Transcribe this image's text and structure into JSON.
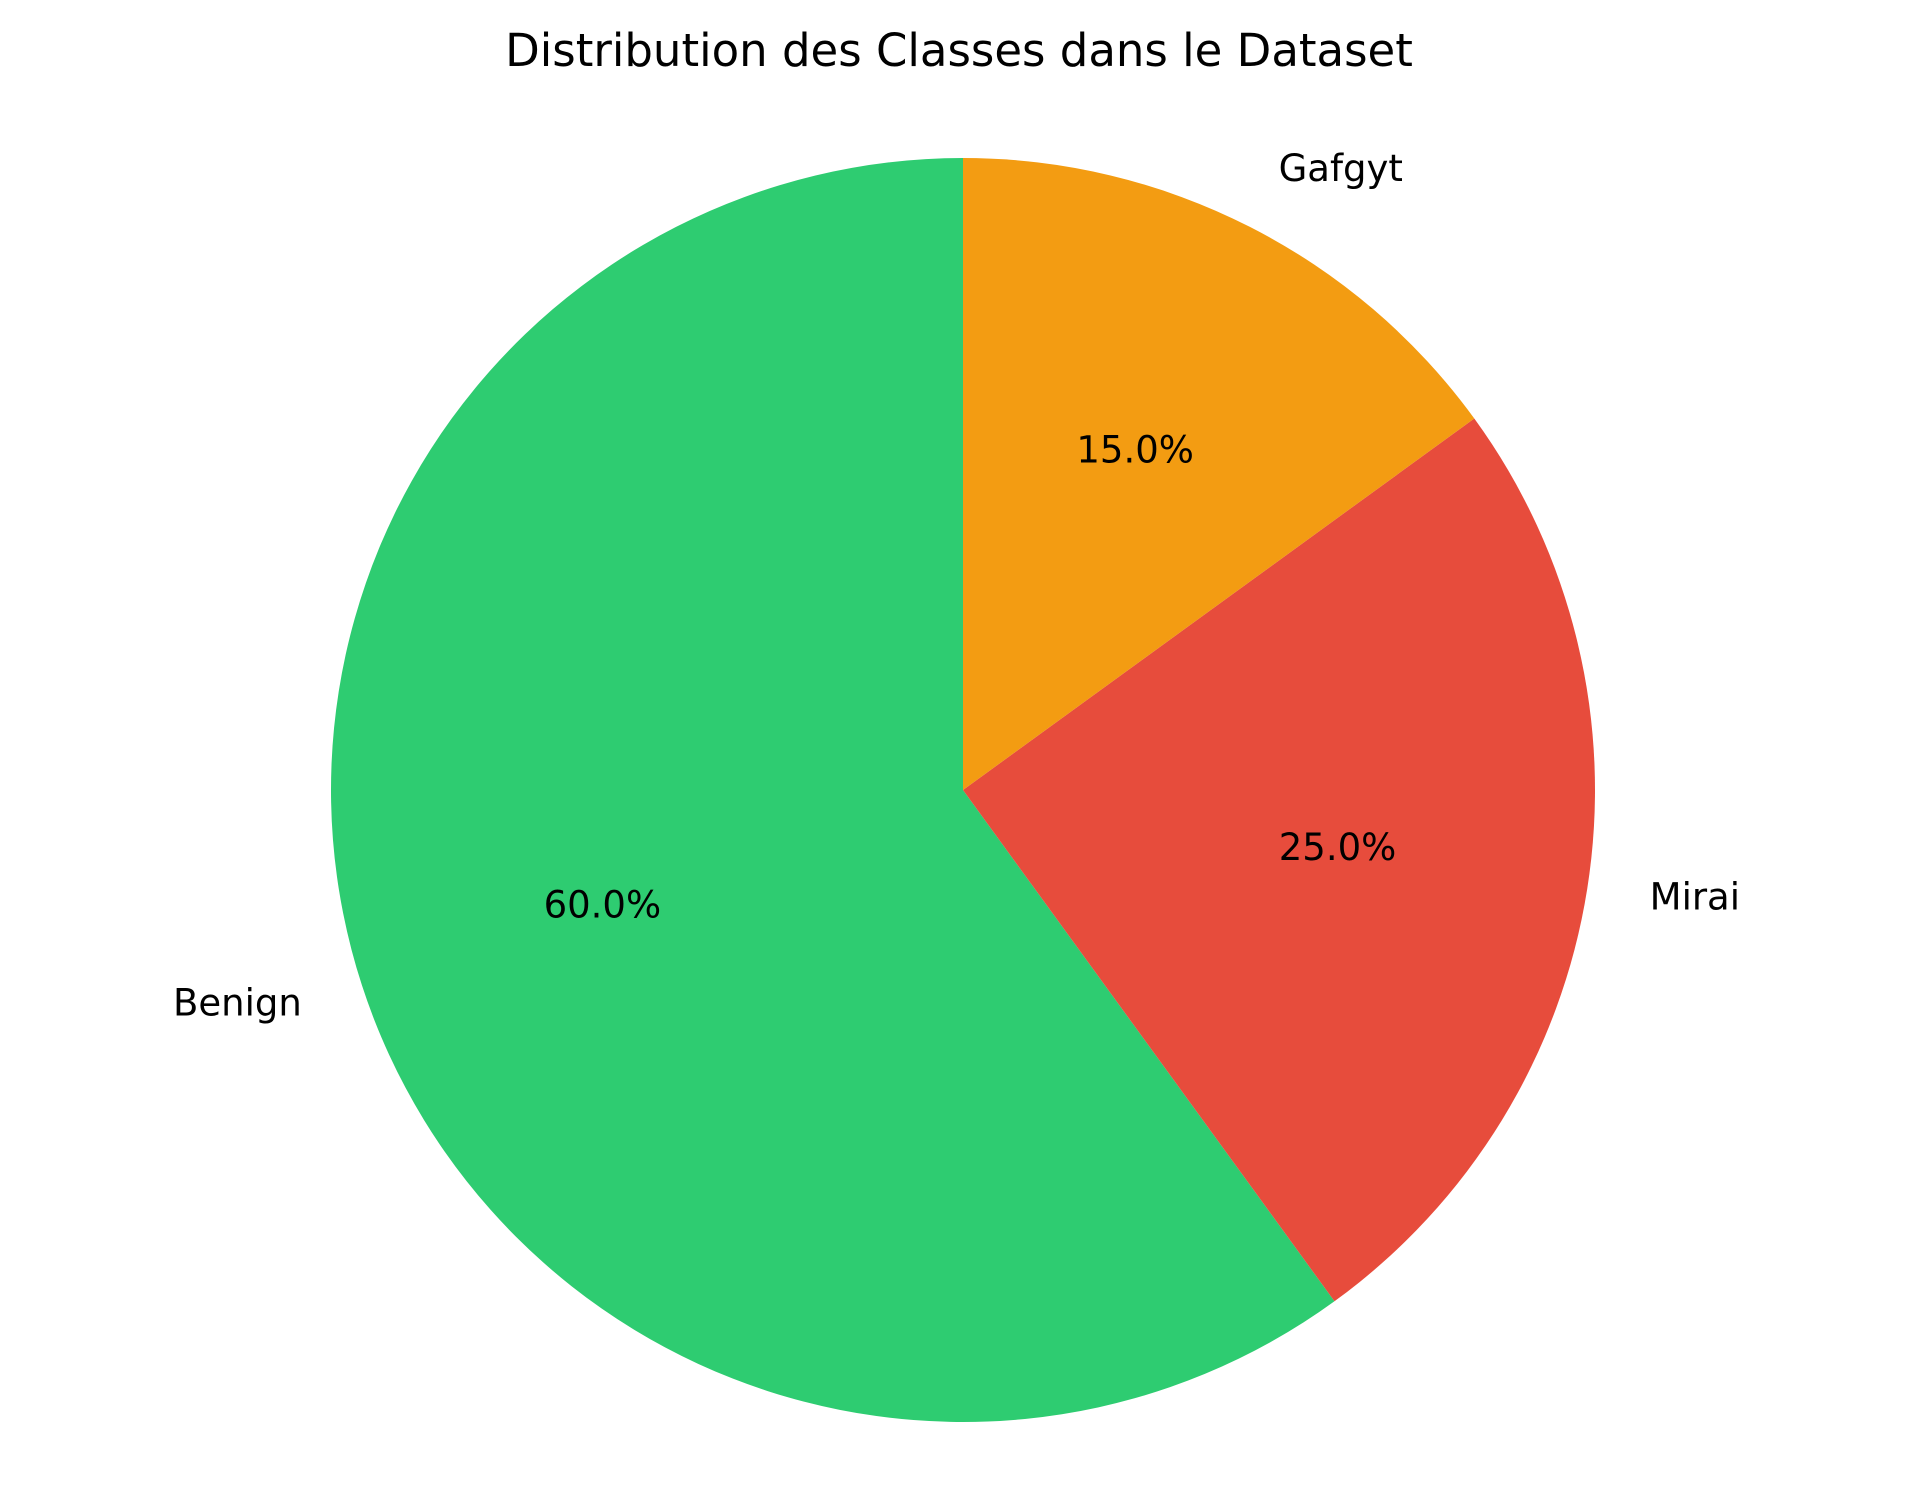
{
  "chart_data": {
    "type": "pie",
    "title": "Distribution des Classes dans le Dataset",
    "slices": [
      {
        "label": "Benign",
        "value": 60.0,
        "pct_label": "60.0%",
        "color": "#2ecc71"
      },
      {
        "label": "Mirai",
        "value": 25.0,
        "pct_label": "25.0%",
        "color": "#e74c3c"
      },
      {
        "label": "Gafgyt",
        "value": 15.0,
        "pct_label": "15.0%",
        "color": "#f39c12"
      }
    ],
    "start_angle_deg": 90,
    "direction": "counterclockwise",
    "legend": "none"
  }
}
